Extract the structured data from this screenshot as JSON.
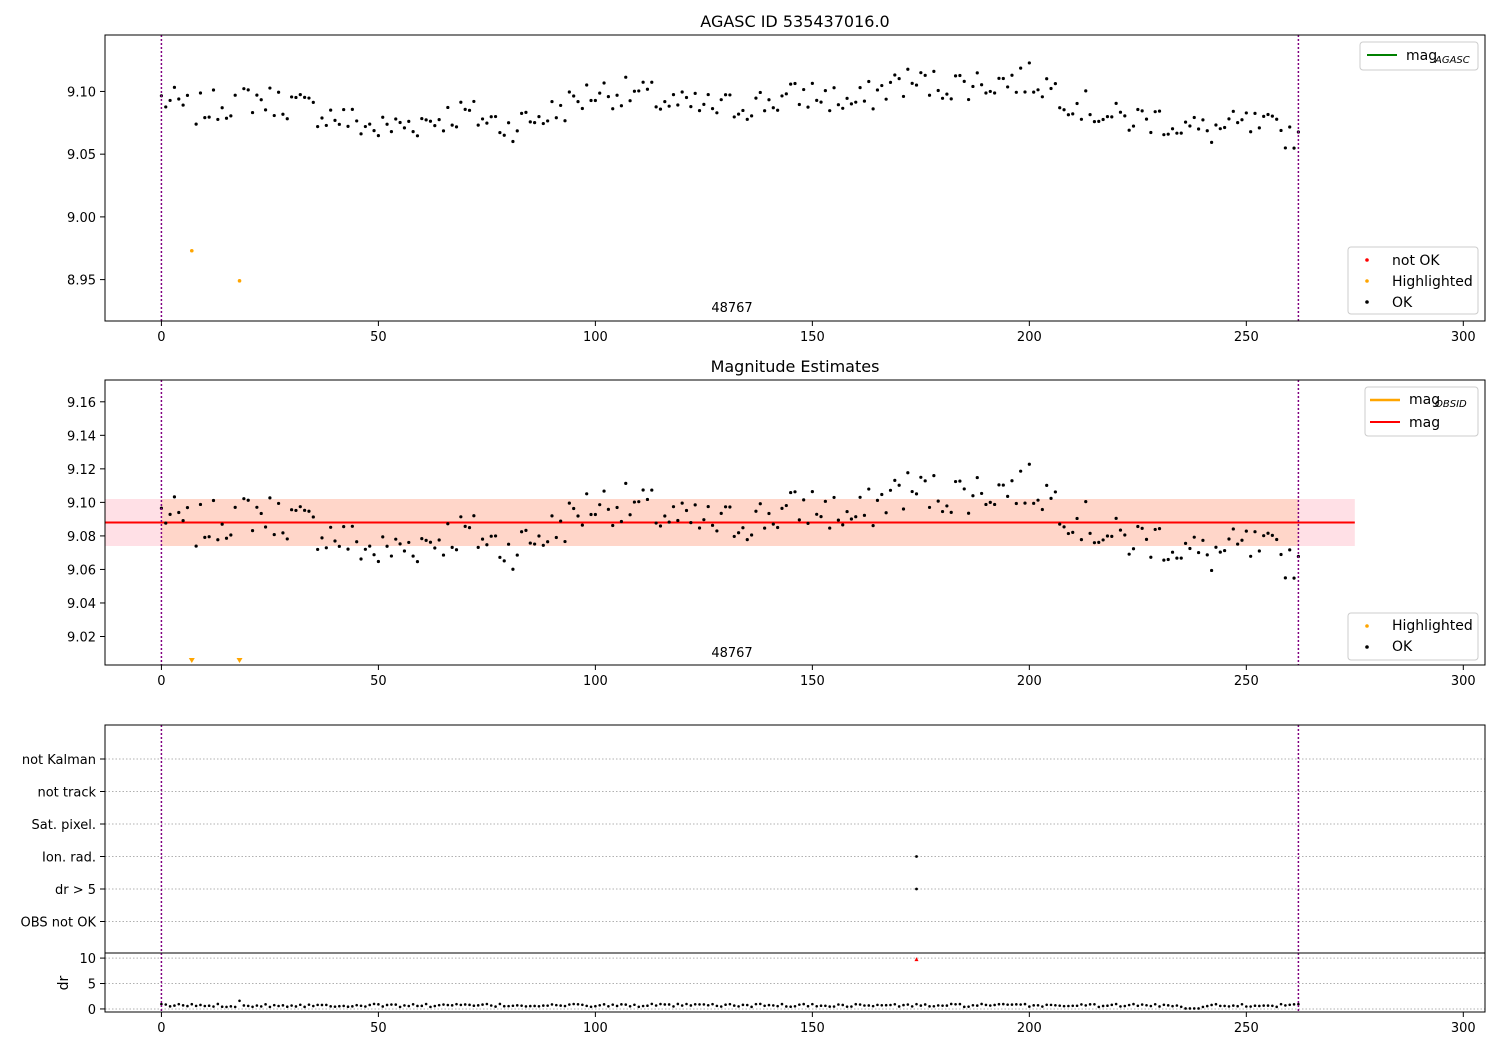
{
  "chart_data": [
    {
      "type": "scatter",
      "title": "AGASC ID 535437016.0",
      "xlim": [
        -13,
        305
      ],
      "ylim": [
        8.917,
        9.145
      ],
      "x_ticks": [
        0,
        50,
        100,
        150,
        200,
        250,
        300
      ],
      "y_ticks": [
        8.95,
        9.0,
        9.05,
        9.1
      ],
      "y_tick_labels": [
        "8.95",
        "9.00",
        "9.05",
        "9.10"
      ],
      "obs_boundaries": [
        0,
        262
      ],
      "obsid_annotation": {
        "text": "48767",
        "x": 131
      },
      "highlighted_points": [
        {
          "x": 7,
          "y": 8.973
        },
        {
          "x": 18,
          "y": 8.949
        }
      ],
      "ok_series": {
        "name": "OK",
        "y_offset": 0,
        "x_start": 0,
        "x_end": 262
      },
      "line_legend": [
        {
          "label": "mag",
          "subscript": "AGASC",
          "color": "#008000"
        }
      ],
      "marker_legend": [
        {
          "label": "not OK",
          "color": "#ff0000"
        },
        {
          "label": "Highlighted",
          "color": "#ffa500"
        },
        {
          "label": "OK",
          "color": "#000000"
        }
      ],
      "grid": false
    },
    {
      "type": "scatter",
      "title": "Magnitude Estimates",
      "xlim": [
        -13,
        305
      ],
      "ylim": [
        9.003,
        9.173
      ],
      "x_ticks": [
        0,
        50,
        100,
        150,
        200,
        250,
        300
      ],
      "y_ticks": [
        9.02,
        9.04,
        9.06,
        9.08,
        9.1,
        9.12,
        9.14,
        9.16
      ],
      "y_tick_labels": [
        "9.02",
        "9.04",
        "9.06",
        "9.08",
        "9.10",
        "9.12",
        "9.14",
        "9.16"
      ],
      "obs_boundaries": [
        0,
        262
      ],
      "obsid_annotation": {
        "text": "48767",
        "x": 131
      },
      "mag_line": {
        "value": 9.088,
        "x_start": -13,
        "x_end": 275,
        "color": "#ff0000"
      },
      "mag_band": {
        "low": 9.074,
        "high": 9.102,
        "x_start": -13,
        "x_end": 275
      },
      "mag_obsid_band": {
        "low": 9.074,
        "high": 9.102,
        "x_start": 0,
        "x_end": 262
      },
      "highlighted_out_of_range": [
        7,
        18
      ],
      "ok_series": {
        "name": "OK",
        "y_offset": 0,
        "x_start": 0,
        "x_end": 262
      },
      "line_legend": [
        {
          "label": "mag",
          "subscript": "OBSID",
          "color": "#ffa500"
        },
        {
          "label": "mag",
          "subscript": "",
          "color": "#ff0000"
        }
      ],
      "marker_legend": [
        {
          "label": "Highlighted",
          "color": "#ffa500"
        },
        {
          "label": "OK",
          "color": "#000000"
        }
      ],
      "grid": false
    },
    {
      "type": "scatter",
      "title": "",
      "xlim": [
        -13,
        305
      ],
      "x_ticks": [
        0,
        50,
        100,
        150,
        200,
        250,
        300
      ],
      "flag_categories": [
        "not Kalman",
        "not track",
        "Sat. pixel.",
        "Ion. rad.",
        "dr > 5",
        "OBS not OK"
      ],
      "flag_points": [
        {
          "category": "Ion. rad.",
          "x": 174
        },
        {
          "category": "dr > 5",
          "x": 174
        }
      ],
      "obs_boundaries": [
        0,
        262
      ],
      "grid": true
    },
    {
      "type": "scatter",
      "title": "",
      "ylabel": "dr",
      "xlim": [
        -13,
        305
      ],
      "ylim": [
        -0.6,
        11
      ],
      "x_ticks": [
        0,
        50,
        100,
        150,
        200,
        250,
        300
      ],
      "y_ticks": [
        0,
        5,
        10
      ],
      "y_tick_labels": [
        "0",
        "5",
        "10"
      ],
      "x_tick_labels": [
        "0",
        "50",
        "100",
        "150",
        "200",
        "250",
        "300"
      ],
      "outlier": {
        "x": 174,
        "y": 9.8,
        "color": "#ff0000"
      },
      "series": [
        {
          "x_start": 0,
          "x_end": 262,
          "base": 0.7
        }
      ],
      "obs_boundaries": [
        0,
        262
      ],
      "grid": true
    }
  ],
  "colors": {
    "boundary": "#800080",
    "band_fill": "#ffd6c9",
    "band_extra": "#ffe0e6"
  }
}
